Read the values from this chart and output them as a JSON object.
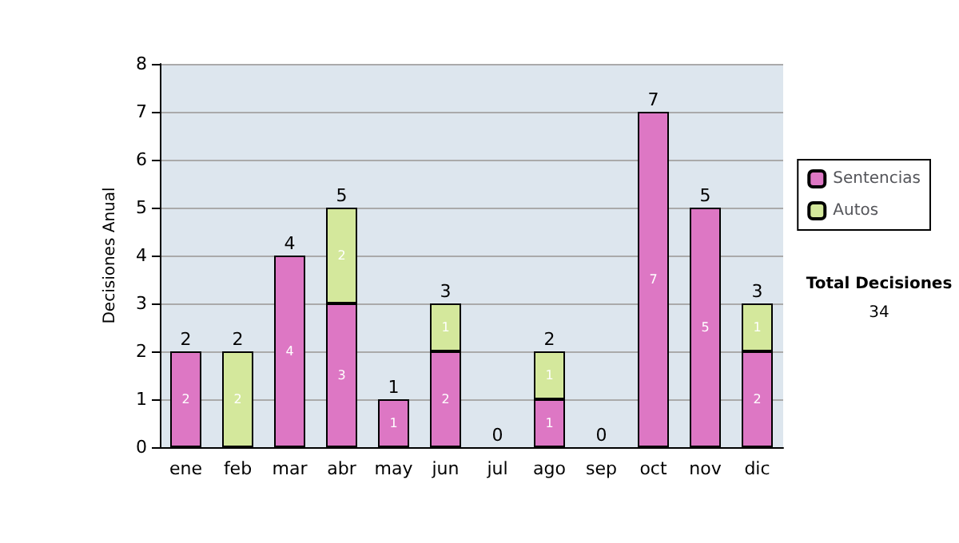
{
  "chart_data": {
    "type": "bar",
    "stacked": true,
    "ylabel": "Decisiones Anual",
    "categories": [
      "ene",
      "feb",
      "mar",
      "abr",
      "may",
      "jun",
      "jul",
      "ago",
      "sep",
      "oct",
      "nov",
      "dic"
    ],
    "series": [
      {
        "name": "Sentencias",
        "color": "#dd77c4",
        "values": [
          2,
          0,
          4,
          3,
          1,
          2,
          0,
          1,
          0,
          7,
          5,
          2
        ],
        "value_labels": [
          "2",
          null,
          "4",
          "3",
          "1",
          "2",
          null,
          "1",
          null,
          "7",
          "5",
          "2"
        ]
      },
      {
        "name": "Autos",
        "color": "#d4e89c",
        "values": [
          0,
          2,
          0,
          2,
          0,
          1,
          0,
          1,
          0,
          0,
          0,
          1
        ],
        "value_labels": [
          null,
          "2",
          null,
          "2",
          null,
          "1",
          null,
          "1",
          null,
          null,
          null,
          "1"
        ]
      }
    ],
    "totals": [
      "2",
      "2",
      "4",
      "5",
      "1",
      "3",
      "0",
      "2",
      "0",
      "7",
      "5",
      "3"
    ],
    "ylim": [
      0,
      8
    ],
    "yticks": [
      0,
      1,
      2,
      3,
      4,
      5,
      6,
      7,
      8
    ],
    "grid": "y",
    "legend": "right",
    "annotations": [
      "Total Decisiones",
      "34"
    ]
  }
}
